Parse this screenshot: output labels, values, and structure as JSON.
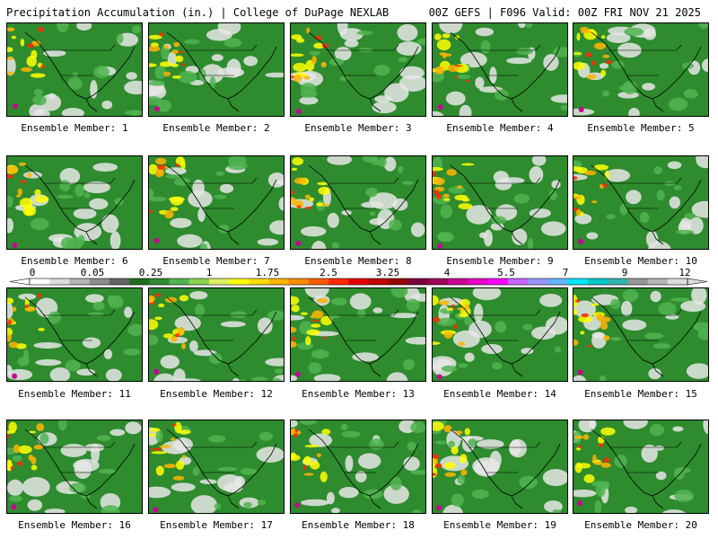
{
  "header": {
    "title": "Precipitation Accumulation (in.) | College of DuPage NEXLAB",
    "run_info": "00Z GEFS | F096 Valid: 00Z FRI NOV 21 2025"
  },
  "legend": {
    "ticks": [
      "0",
      "0.05",
      "0.25",
      "1",
      "1.75",
      "2.5",
      "3.25",
      "4",
      "5.5",
      "7",
      "9",
      "12"
    ],
    "colors": [
      "#ffffff",
      "#dcdcdc",
      "#b4b4b4",
      "#8c8c8c",
      "#646464",
      "#1e6e1e",
      "#2e8b2e",
      "#50b450",
      "#8cd250",
      "#dcf064",
      "#ffff00",
      "#ffdc00",
      "#ffb400",
      "#ff8c00",
      "#ff5a00",
      "#ff2800",
      "#e60000",
      "#be0000",
      "#960000",
      "#78003c",
      "#a0005a",
      "#c80096",
      "#e600c8",
      "#ff00ff",
      "#c864ff",
      "#9696ff",
      "#64b4ff",
      "#00e6ff",
      "#00c8c8",
      "#32b4b4",
      "#969696",
      "#b4b4b4",
      "#dcdcdc"
    ]
  },
  "members": [
    {
      "label": "Ensemble Member: 1"
    },
    {
      "label": "Ensemble Member: 2"
    },
    {
      "label": "Ensemble Member: 3"
    },
    {
      "label": "Ensemble Member: 4"
    },
    {
      "label": "Ensemble Member: 5"
    },
    {
      "label": "Ensemble Member: 6"
    },
    {
      "label": "Ensemble Member: 7"
    },
    {
      "label": "Ensemble Member: 8"
    },
    {
      "label": "Ensemble Member: 9"
    },
    {
      "label": "Ensemble Member: 10"
    },
    {
      "label": "Ensemble Member: 11"
    },
    {
      "label": "Ensemble Member: 12"
    },
    {
      "label": "Ensemble Member: 13"
    },
    {
      "label": "Ensemble Member: 14"
    },
    {
      "label": "Ensemble Member: 15"
    },
    {
      "label": "Ensemble Member: 16"
    },
    {
      "label": "Ensemble Member: 17"
    },
    {
      "label": "Ensemble Member: 18"
    },
    {
      "label": "Ensemble Member: 19"
    },
    {
      "label": "Ensemble Member: 20"
    }
  ],
  "palette": {
    "ocean_base": "#2e8b2e",
    "dry": "#e6e6e6",
    "light": "#50b450",
    "moderate": "#ffff00",
    "heavy": "#ffb400",
    "very_heavy": "#ff2800",
    "extreme": "#c80096",
    "coastline": "#000000"
  }
}
